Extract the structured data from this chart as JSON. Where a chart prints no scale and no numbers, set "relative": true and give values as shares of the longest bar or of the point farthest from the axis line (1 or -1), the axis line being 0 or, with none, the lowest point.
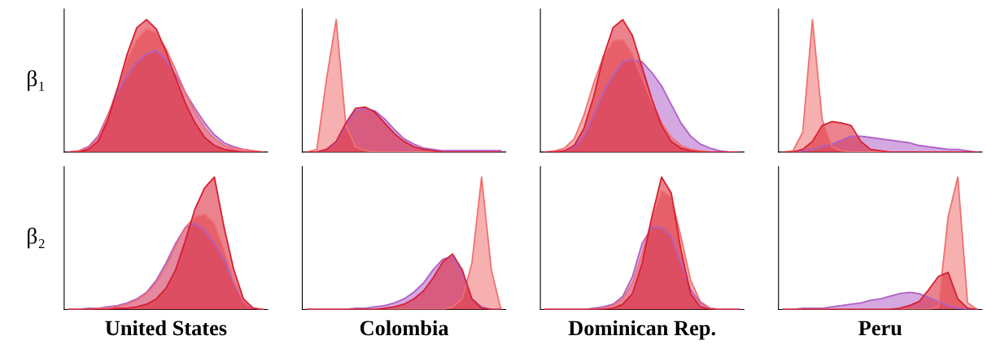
{
  "chart_data": [
    {
      "type": "area",
      "relative": true,
      "ylabel": "β₁",
      "categories": [
        null,
        null,
        null,
        null,
        null,
        null,
        null,
        null,
        null,
        null,
        null,
        null,
        null,
        null,
        null,
        null,
        null,
        null,
        null,
        null,
        null
      ],
      "series": [
        {
          "color": "#b060c8",
          "values": [
            0,
            0.01,
            0.04,
            0.12,
            0.28,
            0.45,
            0.58,
            0.68,
            0.74,
            0.77,
            0.7,
            0.58,
            0.45,
            0.33,
            0.22,
            0.13,
            0.07,
            0.04,
            0.02,
            0.01,
            0
          ]
        },
        {
          "color": "#f07070",
          "values": [
            0,
            0.01,
            0.03,
            0.1,
            0.27,
            0.48,
            0.7,
            0.85,
            0.93,
            0.9,
            0.78,
            0.62,
            0.45,
            0.3,
            0.18,
            0.1,
            0.05,
            0.03,
            0.02,
            0.01,
            0
          ]
        },
        {
          "color": "#d81e30",
          "values": [
            0,
            0,
            0.02,
            0.08,
            0.24,
            0.48,
            0.74,
            0.94,
            1.0,
            0.93,
            0.76,
            0.56,
            0.37,
            0.22,
            0.11,
            0.05,
            0.02,
            0.01,
            0,
            0,
            0
          ]
        }
      ]
    },
    {
      "type": "area",
      "relative": true,
      "categories": [
        null,
        null,
        null,
        null,
        null,
        null,
        null,
        null,
        null,
        null,
        null,
        null,
        null,
        null,
        null,
        null,
        null,
        null,
        null,
        null,
        null
      ],
      "series": [
        {
          "color": "#b060c8",
          "values": [
            0,
            0,
            0.02,
            0.07,
            0.2,
            0.31,
            0.33,
            0.31,
            0.25,
            0.17,
            0.1,
            0.06,
            0.03,
            0.02,
            0.01,
            0.01,
            0.01,
            0.01,
            0.01,
            0.01,
            0.01
          ]
        },
        {
          "color": "#f07070",
          "values": [
            0,
            0.02,
            0.55,
            1.0,
            0.2,
            0.04,
            0.01,
            0,
            0,
            0,
            0,
            0,
            0,
            0,
            0,
            0,
            0,
            0,
            0,
            0,
            0
          ]
        },
        {
          "color": "#d81e30",
          "values": [
            0,
            0,
            0.02,
            0.08,
            0.22,
            0.33,
            0.34,
            0.3,
            0.22,
            0.14,
            0.08,
            0.04,
            0.02,
            0.01,
            0,
            0,
            0,
            0,
            0,
            0,
            0
          ]
        }
      ]
    },
    {
      "type": "area",
      "relative": true,
      "categories": [
        null,
        null,
        null,
        null,
        null,
        null,
        null,
        null,
        null,
        null,
        null,
        null,
        null,
        null,
        null,
        null,
        null,
        null,
        null,
        null,
        null
      ],
      "series": [
        {
          "color": "#b060c8",
          "values": [
            0,
            0,
            0.01,
            0.04,
            0.12,
            0.28,
            0.45,
            0.58,
            0.68,
            0.7,
            0.68,
            0.6,
            0.5,
            0.36,
            0.22,
            0.12,
            0.06,
            0.03,
            0.01,
            0,
            0
          ]
        },
        {
          "color": "#f07070",
          "values": [
            0,
            0.01,
            0.03,
            0.1,
            0.28,
            0.52,
            0.72,
            0.84,
            0.85,
            0.74,
            0.56,
            0.38,
            0.22,
            0.11,
            0.05,
            0.02,
            0.01,
            0,
            0,
            0,
            0
          ]
        },
        {
          "color": "#d81e30",
          "values": [
            0,
            0,
            0.01,
            0.05,
            0.18,
            0.42,
            0.72,
            0.94,
            1.0,
            0.88,
            0.64,
            0.4,
            0.2,
            0.08,
            0.03,
            0.01,
            0,
            0,
            0,
            0,
            0
          ]
        }
      ]
    },
    {
      "type": "area",
      "relative": true,
      "categories": [
        null,
        null,
        null,
        null,
        null,
        null,
        null,
        null,
        null,
        null,
        null,
        null,
        null,
        null,
        null,
        null,
        null,
        null,
        null,
        null,
        null
      ],
      "series": [
        {
          "color": "#b060c8",
          "values": [
            0,
            0,
            0.01,
            0.02,
            0.04,
            0.06,
            0.09,
            0.12,
            0.12,
            0.11,
            0.1,
            0.09,
            0.08,
            0.07,
            0.05,
            0.04,
            0.03,
            0.02,
            0.02,
            0.01,
            0
          ]
        },
        {
          "color": "#f07070",
          "values": [
            0,
            0.01,
            0.15,
            1.0,
            0.25,
            0.04,
            0.01,
            0,
            0,
            0,
            0,
            0,
            0,
            0,
            0,
            0,
            0,
            0,
            0,
            0,
            0
          ]
        },
        {
          "color": "#d81e30",
          "values": [
            0,
            0,
            0.02,
            0.08,
            0.2,
            0.23,
            0.22,
            0.2,
            0.08,
            0.02,
            0.01,
            0,
            0,
            0,
            0,
            0,
            0,
            0,
            0,
            0,
            0
          ]
        }
      ]
    },
    {
      "type": "area",
      "relative": true,
      "ylabel": "β₂",
      "xlabel": "United States",
      "categories": [
        null,
        null,
        null,
        null,
        null,
        null,
        null,
        null,
        null,
        null,
        null,
        null,
        null,
        null,
        null,
        null,
        null,
        null,
        null,
        null,
        null
      ],
      "series": [
        {
          "color": "#b060c8",
          "values": [
            0,
            0,
            0.01,
            0.01,
            0.02,
            0.03,
            0.05,
            0.08,
            0.13,
            0.22,
            0.35,
            0.5,
            0.62,
            0.65,
            0.6,
            0.5,
            0.38,
            0.2,
            0.06,
            0.01,
            0
          ]
        },
        {
          "color": "#f07070",
          "values": [
            0,
            0,
            0,
            0.01,
            0.01,
            0.02,
            0.04,
            0.07,
            0.12,
            0.2,
            0.32,
            0.48,
            0.62,
            0.7,
            0.72,
            0.65,
            0.45,
            0.22,
            0.06,
            0.01,
            0
          ]
        },
        {
          "color": "#d81e30",
          "values": [
            0,
            0,
            0,
            0,
            0,
            0.01,
            0.01,
            0.02,
            0.04,
            0.08,
            0.16,
            0.3,
            0.52,
            0.76,
            0.92,
            1.0,
            0.62,
            0.3,
            0.08,
            0.01,
            0
          ]
        }
      ]
    },
    {
      "type": "area",
      "relative": true,
      "xlabel": "Colombia",
      "categories": [
        null,
        null,
        null,
        null,
        null,
        null,
        null,
        null,
        null,
        null,
        null,
        null,
        null,
        null,
        null,
        null,
        null,
        null,
        null,
        null,
        null
      ],
      "series": [
        {
          "color": "#b060c8",
          "values": [
            0,
            0,
            0,
            0,
            0,
            0.01,
            0.01,
            0.02,
            0.03,
            0.05,
            0.08,
            0.13,
            0.2,
            0.3,
            0.38,
            0.4,
            0.28,
            0.08,
            0.02,
            0,
            0
          ]
        },
        {
          "color": "#f07070",
          "values": [
            0,
            0,
            0,
            0,
            0,
            0,
            0,
            0,
            0,
            0,
            0,
            0,
            0,
            0,
            0,
            0.02,
            0.08,
            0.35,
            1.0,
            0.3,
            0
          ]
        },
        {
          "color": "#d81e30",
          "values": [
            0,
            0,
            0,
            0,
            0,
            0,
            0,
            0,
            0.01,
            0.02,
            0.04,
            0.08,
            0.14,
            0.24,
            0.36,
            0.42,
            0.3,
            0.08,
            0.01,
            0,
            0
          ]
        }
      ]
    },
    {
      "type": "area",
      "relative": true,
      "xlabel": "Dominican Rep.",
      "categories": [
        null,
        null,
        null,
        null,
        null,
        null,
        null,
        null,
        null,
        null,
        null,
        null,
        null,
        null,
        null,
        null,
        null,
        null,
        null,
        null,
        null
      ],
      "series": [
        {
          "color": "#b060c8",
          "values": [
            0,
            0,
            0,
            0,
            0,
            0.01,
            0.02,
            0.04,
            0.1,
            0.25,
            0.5,
            0.62,
            0.62,
            0.55,
            0.35,
            0.15,
            0.05,
            0.01,
            0,
            0,
            0
          ]
        },
        {
          "color": "#f07070",
          "values": [
            0,
            0,
            0,
            0,
            0,
            0,
            0.01,
            0.03,
            0.08,
            0.2,
            0.42,
            0.68,
            0.9,
            0.85,
            0.55,
            0.22,
            0.06,
            0.01,
            0,
            0,
            0
          ]
        },
        {
          "color": "#d81e30",
          "values": [
            0,
            0,
            0,
            0,
            0,
            0,
            0,
            0.01,
            0.04,
            0.12,
            0.35,
            0.7,
            1.0,
            0.88,
            0.45,
            0.12,
            0.02,
            0,
            0,
            0,
            0
          ]
        }
      ]
    },
    {
      "type": "area",
      "relative": true,
      "xlabel": "Peru",
      "categories": [
        null,
        null,
        null,
        null,
        null,
        null,
        null,
        null,
        null,
        null,
        null,
        null,
        null,
        null,
        null,
        null,
        null,
        null,
        null,
        null,
        null
      ],
      "series": [
        {
          "color": "#b060c8",
          "values": [
            0,
            0,
            0.01,
            0.01,
            0.01,
            0.02,
            0.03,
            0.04,
            0.05,
            0.07,
            0.08,
            0.1,
            0.12,
            0.13,
            0.12,
            0.09,
            0.06,
            0.03,
            0.01,
            0,
            0
          ]
        },
        {
          "color": "#f07070",
          "values": [
            0,
            0,
            0,
            0,
            0,
            0,
            0,
            0,
            0,
            0,
            0,
            0,
            0,
            0,
            0,
            0,
            0.02,
            0.7,
            1.0,
            0.05,
            0
          ]
        },
        {
          "color": "#d81e30",
          "values": [
            0,
            0,
            0,
            0,
            0,
            0,
            0,
            0,
            0,
            0,
            0,
            0,
            0.01,
            0.03,
            0.06,
            0.15,
            0.25,
            0.28,
            0.08,
            0.01,
            0
          ]
        }
      ]
    }
  ]
}
